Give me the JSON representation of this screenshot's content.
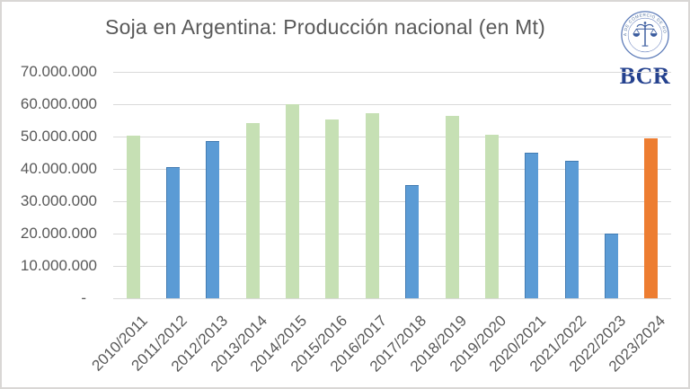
{
  "title": "Soja en Argentina: Producción nacional (en Mt)",
  "logo": {
    "text": "BCR",
    "seal_text": "BOLSA DE COMERCIO DE ROSARIO",
    "color": "#24418e"
  },
  "colors": {
    "green": "#c6e0b4",
    "blue": "#5b9bd5",
    "orange": "#ed7d31",
    "gridline": "#d9d9d9",
    "axis_text": "#595959",
    "title_text": "#595959",
    "frame_border": "#d9d7d5",
    "logo_blue": "#3a5b9e"
  },
  "chart_data": {
    "type": "bar",
    "title": "Soja en Argentina: Producción nacional (en Mt)",
    "categories": [
      "2010/2011",
      "2011/2012",
      "2012/2013",
      "2013/2014",
      "2014/2015",
      "2015/2016",
      "2016/2017",
      "2017/2018",
      "2018/2019",
      "2019/2020",
      "2020/2021",
      "2021/2022",
      "2022/2023",
      "2023/2024"
    ],
    "values": [
      50400000,
      40500000,
      48500000,
      54300000,
      60000000,
      55300000,
      57300000,
      35000000,
      56500000,
      50600000,
      45000000,
      42400000,
      20000000,
      49500000
    ],
    "values_mt": [
      50.4,
      40.5,
      48.5,
      54.3,
      60.0,
      55.3,
      57.3,
      35.0,
      56.5,
      50.6,
      45.0,
      42.4,
      20.0,
      49.5
    ],
    "bar_colors": [
      "green",
      "blue",
      "blue",
      "green",
      "green",
      "green",
      "green",
      "blue",
      "green",
      "green",
      "blue",
      "blue",
      "blue",
      "orange"
    ],
    "y_tick_labels": [
      "70.000.000",
      "60.000.000",
      "50.000.000",
      "40.000.000",
      "30.000.000",
      "20.000.000",
      "10.000.000",
      "-"
    ],
    "ylim": [
      0,
      70000000
    ],
    "grid": true,
    "legend": false,
    "xlabel": "",
    "ylabel": ""
  }
}
